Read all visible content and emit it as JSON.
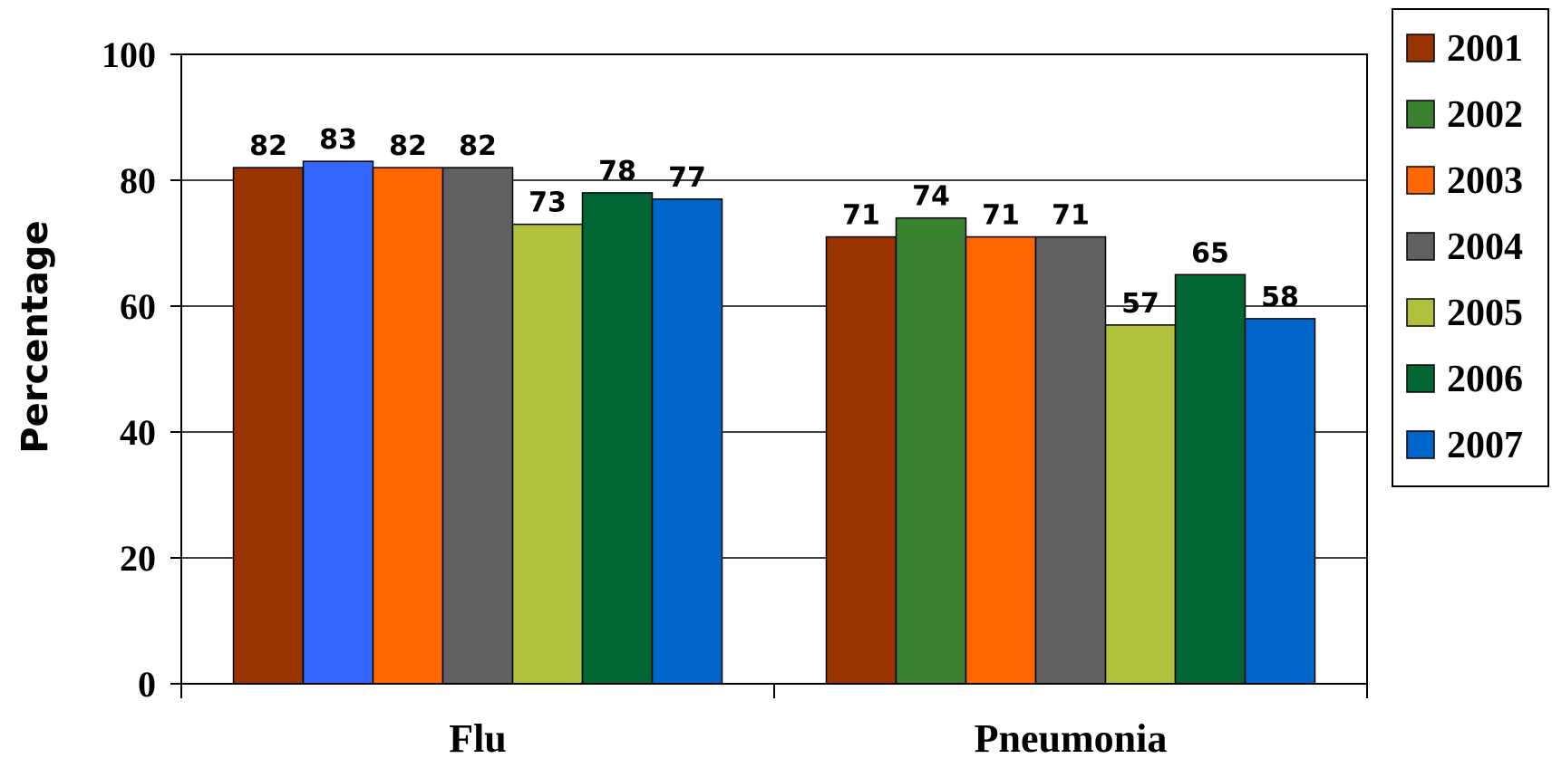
{
  "chart_data": {
    "type": "bar",
    "categories": [
      "Flu",
      "Pneumonia"
    ],
    "series": [
      {
        "name": "2001",
        "color": "#993300",
        "values": [
          82,
          71
        ]
      },
      {
        "name": "2002",
        "color": "#3A8230",
        "values": [
          83,
          74
        ]
      },
      {
        "name": "2003",
        "color": "#FF6600",
        "values": [
          82,
          71
        ]
      },
      {
        "name": "2004",
        "color": "#606060",
        "values": [
          82,
          71
        ]
      },
      {
        "name": "2005",
        "color": "#B0BF3C",
        "values": [
          73,
          57
        ]
      },
      {
        "name": "2006",
        "color": "#006633",
        "values": [
          78,
          65
        ]
      },
      {
        "name": "2007",
        "color": "#0066CC",
        "values": [
          77,
          58
        ]
      }
    ],
    "bar_color_overrides": [
      {
        "series": 1,
        "category": 0,
        "color": "#3366FF"
      }
    ],
    "ylabel": "Percentage",
    "xlabel": "",
    "ylim": [
      0,
      100
    ],
    "yticks": [
      0,
      20,
      40,
      60,
      80,
      100
    ],
    "grid": true,
    "legend": "right"
  }
}
